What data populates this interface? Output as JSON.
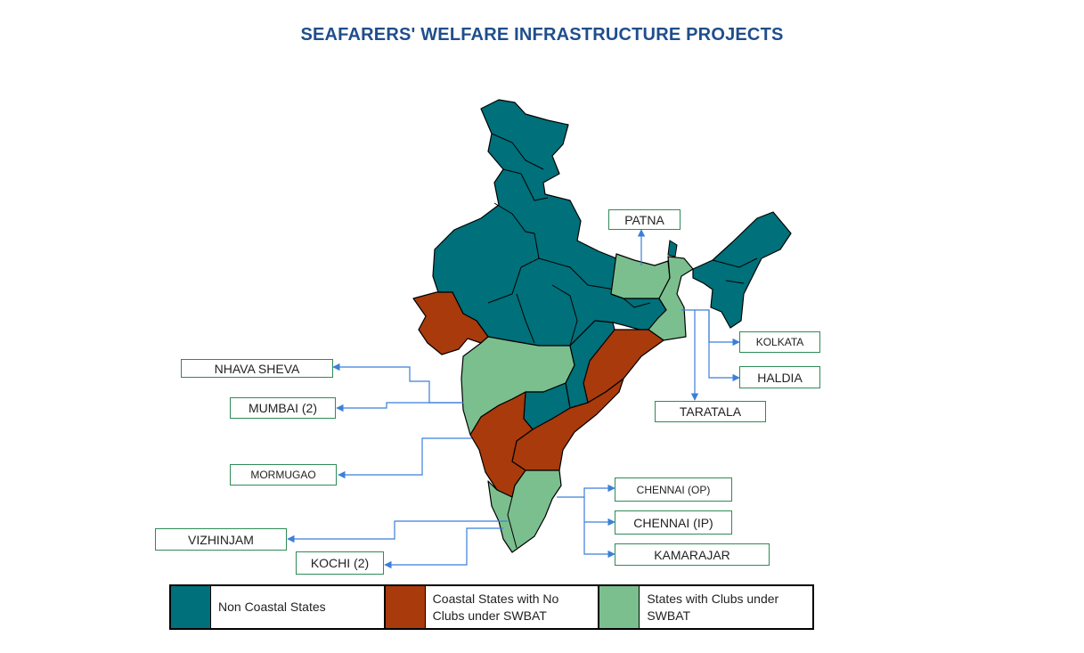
{
  "title": "SEAFARERS' WELFARE INFRASTRUCTURE PROJECTS",
  "colors": {
    "non_coastal": "#00707a",
    "coastal_no_clubs": "#a83a0c",
    "clubs_swbat": "#7bbf8e",
    "arrow": "#3b7fd9",
    "box_border": "#2e8b57"
  },
  "ports": {
    "patna": "PATNA",
    "kolkata": "KOLKATA",
    "haldia": "HALDIA",
    "taratala": "TARATALA",
    "nhava_sheva": "NHAVA SHEVA",
    "mumbai": "MUMBAI (2)",
    "mormugao": "MORMUGAO",
    "vizhinjam": "VIZHINJAM",
    "kochi": "KOCHI (2)",
    "chennai_op": "CHENNAI (OP)",
    "chennai_ip": "CHENNAI (IP)",
    "kamarajar": "KAMARAJAR"
  },
  "legend": [
    {
      "label": "Non Coastal States",
      "color": "#00707a"
    },
    {
      "label": "Coastal States with No Clubs under SWBAT",
      "color": "#a83a0c"
    },
    {
      "label": "States with Clubs under SWBAT",
      "color": "#7bbf8e"
    }
  ]
}
